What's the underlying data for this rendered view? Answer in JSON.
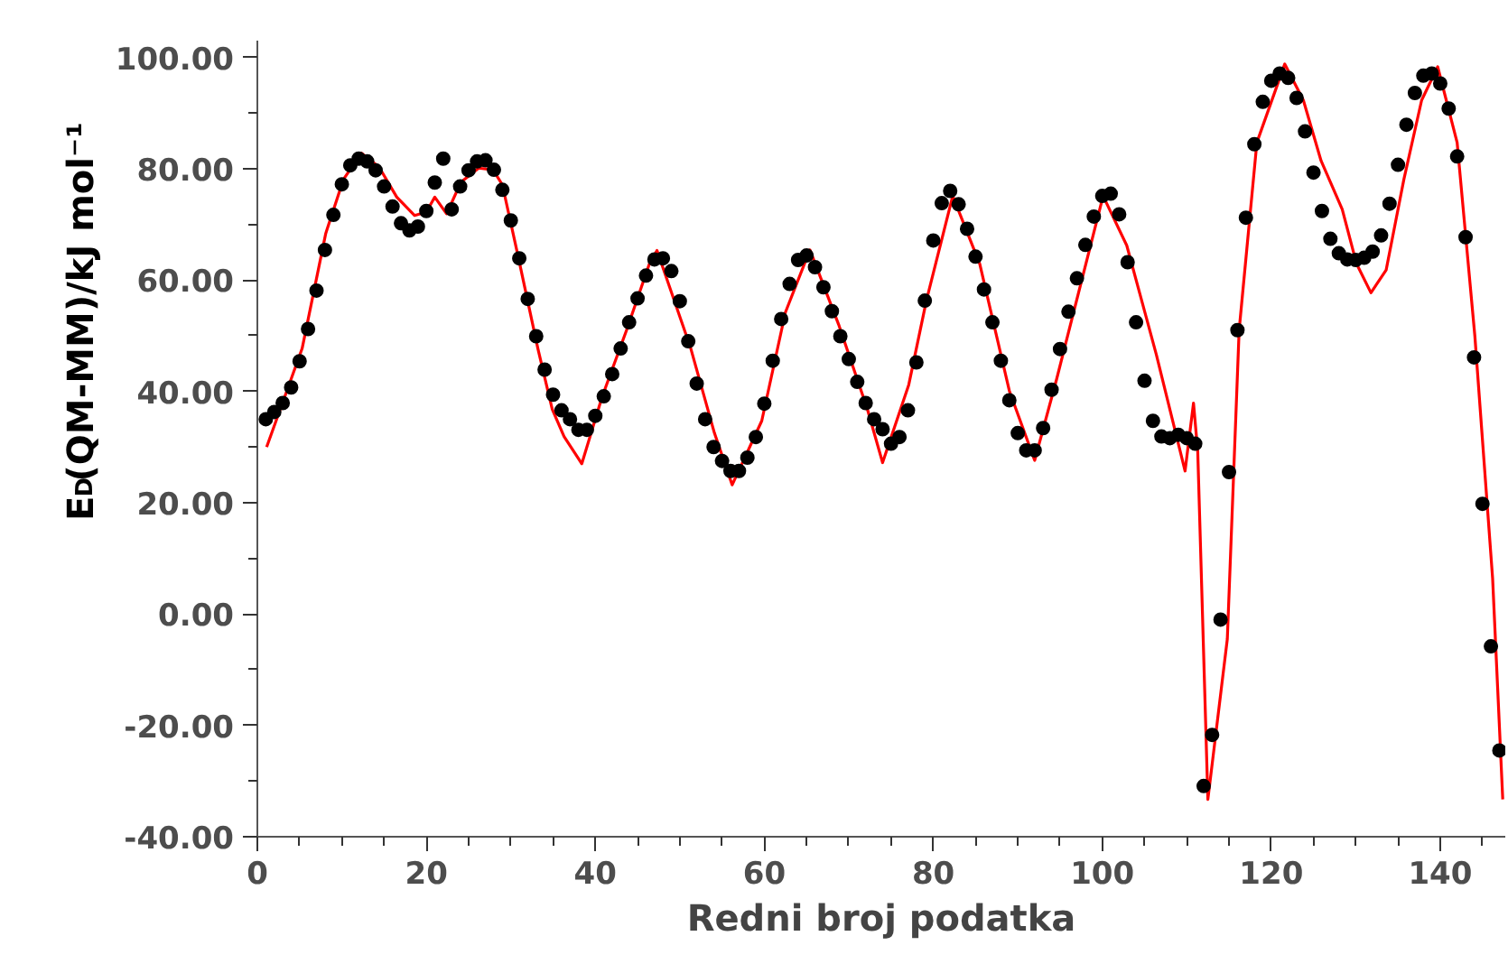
{
  "chart_data": {
    "type": "scatter",
    "xlabel": "Redni broj podatka",
    "ylabel": "E$_{D}$(QM-MM)/kJ mol⁻¹",
    "xlim": [
      0,
      147.7
    ],
    "ylim": [
      -40,
      103
    ],
    "xticks": [
      0,
      {
        "value": 5,
        "label": null
      },
      {
        "value": 10,
        "label": null
      },
      {
        "value": 15,
        "label": null
      },
      20,
      {
        "value": 25,
        "label": null
      },
      {
        "value": 30,
        "label": null
      },
      {
        "value": 35,
        "label": null
      },
      40,
      {
        "value": 45,
        "label": null
      },
      {
        "value": 50,
        "label": null
      },
      {
        "value": 55,
        "label": null
      },
      60,
      {
        "value": 65,
        "label": null
      },
      {
        "value": 70,
        "label": null
      },
      {
        "value": 75,
        "label": null
      },
      80,
      {
        "value": 85,
        "label": null
      },
      {
        "value": 90,
        "label": null
      },
      {
        "value": 95,
        "label": null
      },
      100,
      {
        "value": 105,
        "label": null
      },
      {
        "value": 110,
        "label": null
      },
      {
        "value": 115,
        "label": null
      },
      120,
      {
        "value": 125,
        "label": null
      },
      {
        "value": 130,
        "label": null
      },
      {
        "value": 135,
        "label": null
      },
      140,
      {
        "value": 145,
        "label": null
      }
    ],
    "yticks": [
      {
        "value": -40,
        "label": "-40.00"
      },
      {
        "value": -30,
        "label": null
      },
      {
        "value": -20,
        "label": "-20.00"
      },
      {
        "value": -10,
        "label": null
      },
      {
        "value": 0,
        "label": "0.00"
      },
      {
        "value": 10,
        "label": null
      },
      {
        "value": 20,
        "label": "20.00"
      },
      {
        "value": 30,
        "label": null
      },
      {
        "value": 40,
        "label": "40.00"
      },
      {
        "value": 50,
        "label": null
      },
      {
        "value": 60,
        "label": "60.00"
      },
      {
        "value": 70,
        "label": null
      },
      {
        "value": 80,
        "label": "80.00"
      },
      {
        "value": 90,
        "label": null
      },
      {
        "value": 100,
        "label": "100.00"
      }
    ],
    "grid": false,
    "marker": "circle",
    "series": [
      {
        "type": "line",
        "color": "#ff0000",
        "line_style": "solid",
        "marker": "none",
        "x": [
          1.1,
          5.3,
          8.1,
          10.2,
          12.3,
          14.4,
          16.5,
          18.6,
          20.0,
          21.0,
          22.4,
          24.1,
          26.2,
          27.9,
          29.0,
          30.9,
          33.2,
          34.9,
          36.3,
          38.4,
          40.8,
          43.7,
          46.4,
          47.3,
          51.3,
          54.1,
          56.2,
          59.7,
          62.5,
          65.4,
          68.8,
          72.2,
          74.0,
          77.1,
          79.2,
          82.3,
          85.5,
          89.0,
          92.0,
          94.6,
          100.1,
          102.9,
          106.4,
          109.8,
          110.8,
          111.3,
          112.5,
          114.8,
          116.2,
          118.3,
          121.6,
          123.8,
          125.9,
          128.4,
          130.1,
          131.8,
          133.6,
          135.7,
          137.8,
          139.7,
          142.0,
          144.1,
          146.2,
          147.4
        ],
        "values": [
          30.0,
          47.7,
          68.4,
          78.1,
          82.8,
          80.3,
          74.9,
          71.6,
          72.2,
          74.9,
          71.9,
          77.6,
          80.1,
          79.8,
          77.1,
          64.0,
          47.7,
          36.8,
          31.9,
          27.0,
          39.0,
          51.0,
          62.9,
          65.3,
          47.7,
          32.5,
          23.2,
          34.7,
          54.2,
          65.4,
          52.0,
          36.8,
          27.2,
          41.2,
          56.4,
          75.1,
          62.9,
          40.1,
          27.6,
          42.2,
          75.1,
          66.2,
          46.6,
          25.7,
          37.9,
          29.2,
          -33.3,
          -4.5,
          51.0,
          84.7,
          98.8,
          92.3,
          81.4,
          72.7,
          62.9,
          57.7,
          61.8,
          78.1,
          92.3,
          98.3,
          84.7,
          49.9,
          6.4,
          -33.3
        ]
      },
      {
        "color": "#000000",
        "x": [
          1,
          2,
          3,
          4,
          5,
          6,
          7,
          8,
          9,
          10,
          11,
          12,
          13,
          14,
          15,
          16,
          17,
          18,
          19,
          20,
          21,
          22,
          23,
          24,
          25,
          26,
          27,
          28,
          29,
          30,
          31,
          32,
          33,
          34,
          35,
          36,
          37,
          38,
          39,
          40,
          41,
          42,
          43,
          44,
          45,
          46,
          47,
          48,
          49,
          50,
          51,
          52,
          53,
          54,
          55,
          56,
          57,
          58,
          59,
          60,
          61,
          62,
          63,
          64,
          65,
          66,
          67,
          68,
          69,
          70,
          71,
          72,
          73,
          74,
          75,
          76,
          77,
          78,
          79,
          80,
          81,
          82,
          83,
          84,
          85,
          86,
          87,
          88,
          89,
          90,
          91,
          92,
          93,
          94,
          95,
          96,
          97,
          98,
          99,
          100,
          101,
          102,
          103,
          104,
          105,
          106,
          107,
          108,
          109,
          110,
          111,
          112,
          113,
          114,
          115,
          116,
          117,
          118,
          119,
          120,
          121,
          122,
          123,
          124,
          125,
          126,
          127,
          128,
          129,
          130,
          131,
          132,
          133,
          134,
          135,
          136,
          137,
          138,
          139,
          140,
          141,
          142,
          143,
          144,
          145,
          146,
          147
        ],
        "values": [
          35.0,
          36.3,
          37.9,
          40.7,
          45.4,
          51.2,
          58.1,
          65.4,
          71.7,
          77.2,
          80.6,
          81.8,
          81.3,
          79.7,
          76.8,
          73.2,
          70.2,
          68.9,
          69.6,
          72.4,
          77.5,
          81.8,
          72.7,
          76.8,
          79.7,
          81.3,
          81.5,
          79.8,
          76.2,
          70.7,
          63.9,
          56.6,
          49.9,
          43.9,
          39.4,
          36.6,
          35.0,
          33.1,
          33.1,
          35.6,
          39.1,
          43.1,
          47.7,
          52.4,
          56.7,
          60.8,
          63.7,
          63.9,
          61.6,
          56.2,
          49.0,
          41.4,
          35.0,
          30.0,
          27.5,
          25.7,
          25.7,
          28.1,
          31.8,
          37.8,
          45.5,
          53.0,
          59.3,
          63.6,
          64.4,
          62.3,
          58.7,
          54.4,
          49.9,
          45.8,
          41.7,
          37.9,
          35.0,
          33.2,
          30.6,
          31.8,
          36.6,
          45.2,
          56.3,
          67.1,
          73.8,
          76.0,
          73.6,
          69.2,
          64.2,
          58.3,
          52.4,
          45.5,
          38.4,
          32.5,
          29.4,
          29.4,
          33.4,
          40.3,
          47.6,
          54.3,
          60.3,
          66.3,
          71.4,
          75.1,
          75.5,
          71.8,
          63.2,
          52.4,
          41.9,
          34.7,
          31.9,
          31.6,
          32.2,
          31.6,
          30.6,
          -30.9,
          -21.7,
          -1.0,
          25.5,
          51.0,
          71.2,
          84.4,
          92.0,
          95.8,
          97.1,
          96.3,
          92.7,
          86.7,
          79.3,
          72.4,
          67.4,
          64.8,
          63.7,
          63.6,
          64.0,
          65.1,
          68.0,
          73.7,
          80.7,
          87.9,
          93.6,
          96.7,
          97.1,
          95.3,
          90.8,
          82.2,
          67.7,
          46.1,
          19.8,
          -5.8,
          -24.5
        ]
      }
    ]
  }
}
